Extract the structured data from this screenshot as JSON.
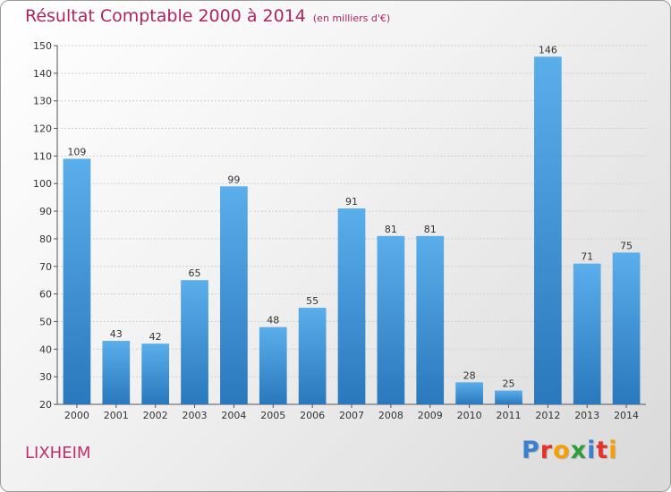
{
  "header": {
    "title": "Résultat Comptable 2000 à 2014",
    "subtitle": "(en milliers d'€)"
  },
  "footer": {
    "town": "LIXHEIM",
    "logo_letters": [
      "P",
      "r",
      "o",
      "x",
      "i",
      "t",
      "i"
    ],
    "logo_colors": [
      "#3a7fd0",
      "#e8312a",
      "#f5a000",
      "#2f9e3a",
      "#3a7fd0",
      "#e8312a",
      "#f5a000"
    ]
  },
  "chart_data": {
    "type": "bar",
    "categories": [
      "2000",
      "2001",
      "2002",
      "2003",
      "2004",
      "2005",
      "2006",
      "2007",
      "2008",
      "2009",
      "2010",
      "2011",
      "2012",
      "2013",
      "2014"
    ],
    "values": [
      109,
      43,
      42,
      65,
      99,
      48,
      55,
      91,
      81,
      81,
      28,
      25,
      146,
      71,
      75
    ],
    "data_labels": [
      "109",
      "43",
      "42",
      "65",
      "99",
      "48",
      "55",
      "91",
      "81",
      "81",
      "28",
      "25",
      "146",
      "71",
      "75"
    ],
    "ylim": [
      20,
      150
    ],
    "yticks": [
      "20",
      "30",
      "40",
      "50",
      "60",
      "70",
      "80",
      "90",
      "100",
      "110",
      "120",
      "130",
      "140",
      "150"
    ],
    "grid": true,
    "bar_color_top": "#5aaeea",
    "bar_color_bottom": "#2a78bd"
  }
}
